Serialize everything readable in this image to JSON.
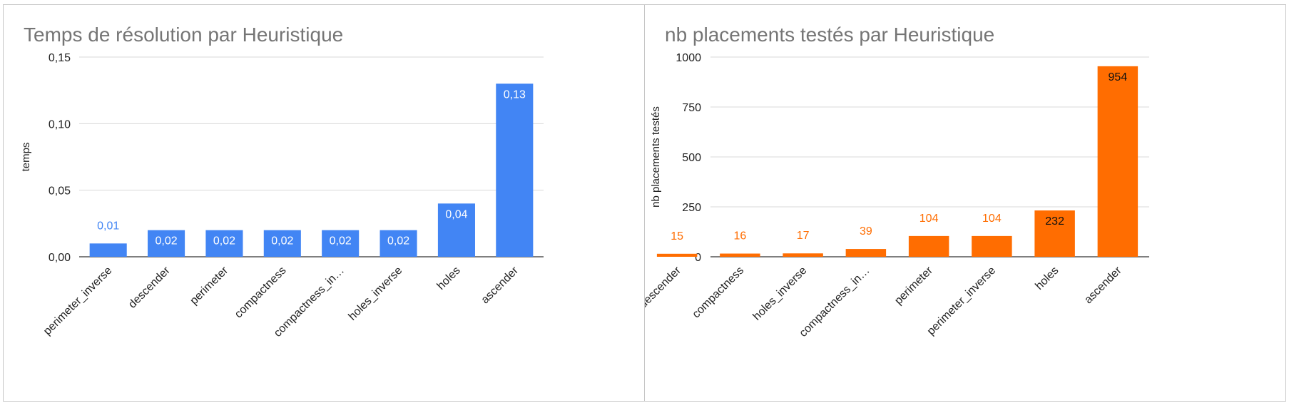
{
  "chart_data": [
    {
      "type": "bar",
      "title": "Temps de résolution par Heuristique",
      "xlabel": "",
      "ylabel": "temps",
      "ylim": [
        0,
        0.15
      ],
      "yticks": [
        "0,00",
        "0,05",
        "0,10",
        "0,15"
      ],
      "ytick_values": [
        0,
        0.05,
        0.1,
        0.15
      ],
      "categories": [
        "perimeter_inverse",
        "descender",
        "perimeter",
        "compactness",
        "compactness_in…",
        "holes_inverse",
        "holes",
        "ascender"
      ],
      "values": [
        0.01,
        0.02,
        0.02,
        0.02,
        0.02,
        0.02,
        0.04,
        0.13
      ],
      "value_labels": [
        "0,01",
        "0,02",
        "0,02",
        "0,02",
        "0,02",
        "0,02",
        "0,04",
        "0,13"
      ],
      "color": "#4285f4",
      "grid": true,
      "legend": "none"
    },
    {
      "type": "bar",
      "title": "nb placements testés par Heuristique",
      "xlabel": "",
      "ylabel": "nb placements testés",
      "ylim": [
        0,
        1000
      ],
      "yticks": [
        "0",
        "250",
        "500",
        "750",
        "1000"
      ],
      "ytick_values": [
        0,
        250,
        500,
        750,
        1000
      ],
      "categories": [
        "descender",
        "compactness",
        "holes_inverse",
        "compactness_in…",
        "perimeter",
        "perimeter_inverse",
        "holes",
        "ascender"
      ],
      "values": [
        15,
        16,
        17,
        39,
        104,
        104,
        232,
        954
      ],
      "value_labels": [
        "15",
        "16",
        "17",
        "39",
        "104",
        "104",
        "232",
        "954"
      ],
      "color": "#ff6d01",
      "grid": true,
      "legend": "none"
    }
  ]
}
